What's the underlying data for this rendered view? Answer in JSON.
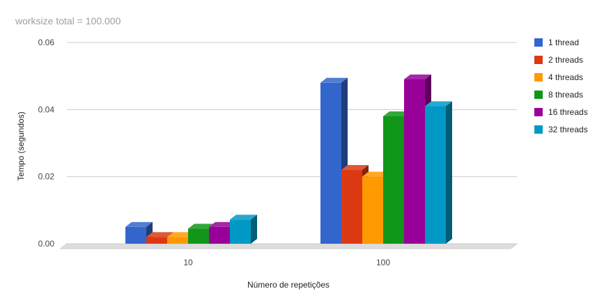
{
  "chart_data": {
    "type": "bar",
    "title": "worksize total = 100.000",
    "xlabel": "Número de repetições",
    "ylabel": "Tempo (segundos)",
    "categories": [
      "10",
      "100"
    ],
    "series": [
      {
        "name": "1 thread",
        "color": "#3366cc",
        "values": [
          0.005,
          0.048
        ]
      },
      {
        "name": "2 threads",
        "color": "#dc3912",
        "values": [
          0.002,
          0.022
        ]
      },
      {
        "name": "4 threads",
        "color": "#ff9900",
        "values": [
          0.002,
          0.02
        ]
      },
      {
        "name": "8 threads",
        "color": "#109618",
        "values": [
          0.0045,
          0.038
        ]
      },
      {
        "name": "16 threads",
        "color": "#990099",
        "values": [
          0.005,
          0.049
        ]
      },
      {
        "name": "32 threads",
        "color": "#0099c6",
        "values": [
          0.0072,
          0.041
        ]
      }
    ],
    "y_ticks": [
      "0.00",
      "0.02",
      "0.04",
      "0.06"
    ],
    "y_tick_values": [
      0,
      0.02,
      0.04,
      0.06
    ],
    "ylim": [
      0,
      0.06
    ],
    "grid": true,
    "legend_position": "right",
    "style": "3d"
  }
}
